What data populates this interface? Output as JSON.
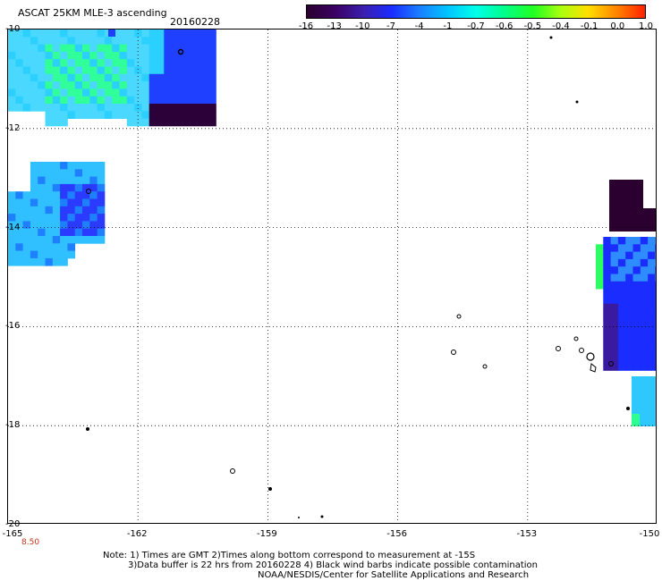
{
  "header": {
    "title": "ASCAT 25KM MLE-3 ascending",
    "date": "20160228"
  },
  "colorbar": {
    "labels": [
      "-16",
      "-13",
      "-10",
      "-7",
      "-4",
      "-1",
      "-0.7",
      "-0.6",
      "-0.5",
      "-0.4",
      "-0.1",
      "0.0",
      "1.0"
    ],
    "colors": [
      "#2b0030",
      "#3b0060",
      "#3a1fb0",
      "#1a2cff",
      "#1a7cff",
      "#00c8ff",
      "#00ffe8",
      "#00ff90",
      "#20ff20",
      "#a8ff10",
      "#ffe000",
      "#ff8000",
      "#ff2000"
    ]
  },
  "axes": {
    "lat_labels": [
      "-10",
      "-12",
      "-14",
      "-16",
      "-18",
      "-20"
    ],
    "lon_labels": [
      "-165",
      "-162",
      "-159",
      "-156",
      "-153",
      "-150"
    ],
    "corner_label": "8.50"
  },
  "notes": [
    "Note: 1) Times are GMT 2)Times along bottom correspond to measurement at -15S",
    "3)Data buffer is 22 hrs from 20160228 4) Black wind barbs indicate possible contamination",
    "NOAA/NESDIS/Center for Satellite Applications and Research"
  ],
  "map_data": {
    "extent": {
      "lon": [
        -165,
        -150
      ],
      "lat": [
        -20,
        -10
      ]
    },
    "grid_lon": [
      -162,
      -159,
      -156,
      -153
    ],
    "grid_lat": [
      -12,
      -14,
      -16,
      -18
    ],
    "swaths": [
      {
        "name": "nw-swath",
        "colors": [
          "#4ad8ff",
          "#30ff9a",
          "#2bd0ff",
          "#2040ff",
          "#2c0038"
        ]
      },
      {
        "name": "west-swath",
        "colors": [
          "#30c0ff",
          "#1f80ff",
          "#2a3bff",
          "#2dff90"
        ]
      },
      {
        "name": "east-swath",
        "colors": [
          "#2b0030",
          "#1b2cff",
          "#2e8cff",
          "#2dff60",
          "#3a1aa0"
        ]
      }
    ]
  }
}
